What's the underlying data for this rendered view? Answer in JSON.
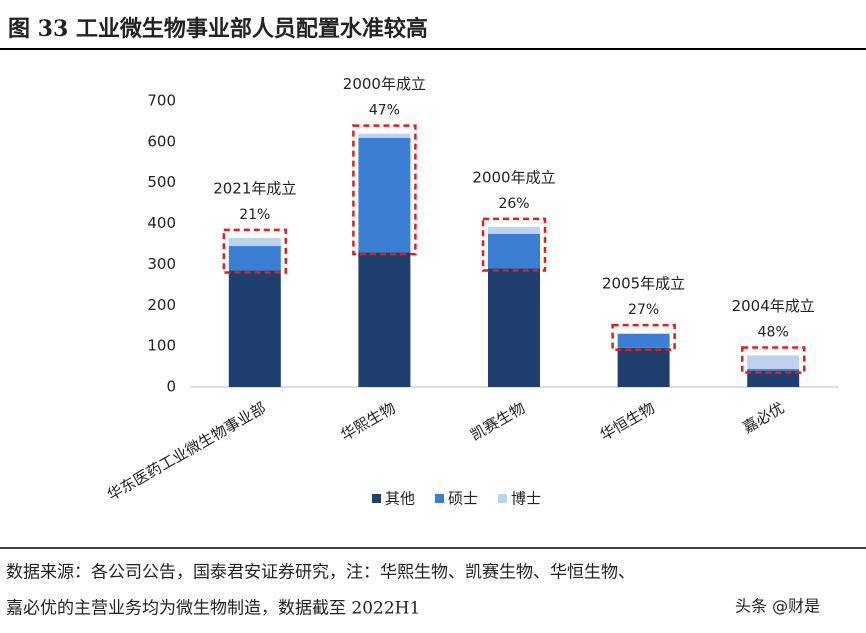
{
  "chart_data": {
    "type": "bar",
    "stacked": true,
    "title": "图 33 工业微生物事业部人员配置水准较高",
    "categories": [
      "华东医药工业微生物事业部",
      "华熙生物",
      "凯赛生物",
      "华恒生物",
      "嘉必优"
    ],
    "series": [
      {
        "name": "其他",
        "color": "#1f3f6e",
        "values": [
          285,
          330,
          290,
          96,
          40
        ]
      },
      {
        "name": "硕士",
        "color": "#3b7fd4",
        "values": [
          60,
          280,
          85,
          34,
          4
        ]
      },
      {
        "name": "博士",
        "color": "#bcd3ee",
        "values": [
          20,
          10,
          17,
          2,
          33
        ]
      }
    ],
    "founded": [
      "2021年成立",
      "2000年成立",
      "2000年成立",
      "2005年成立",
      "2004年成立"
    ],
    "share": {
      "values": [
        21,
        47,
        26,
        27,
        48
      ],
      "value_labels": [
        "21%",
        "47%",
        "26%",
        "27%",
        "48%"
      ]
    },
    "ylim": [
      0,
      700
    ],
    "yticks": [
      0,
      100,
      200,
      300,
      400,
      500,
      600,
      700
    ],
    "grid": false,
    "legend": "bottom"
  },
  "source": [
    "数据来源：各公司公告，国泰君安证券研究，注：华熙生物、凯赛生物、华恒生物、",
    "嘉必优的主营业务均为微生物制造，数据截至 2022H1"
  ],
  "watermark": "头条 @财是"
}
